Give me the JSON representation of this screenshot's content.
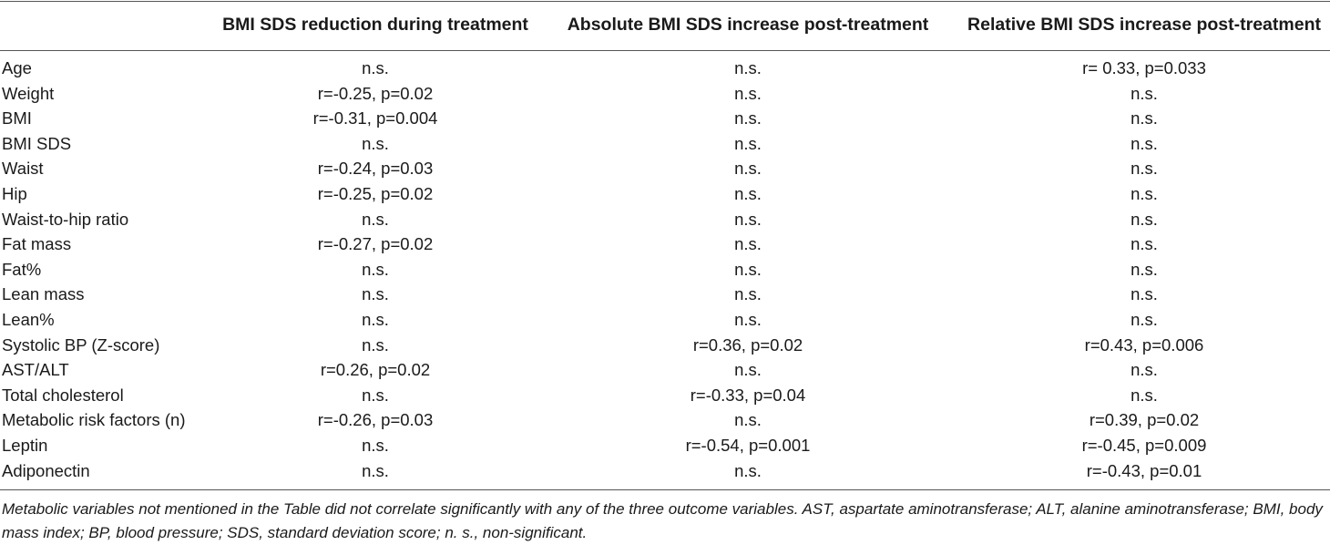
{
  "table": {
    "headers": [
      "",
      "BMI SDS reduction during treatment",
      "Absolute BMI SDS increase post-treatment",
      "Relative BMI SDS increase post-treatment"
    ],
    "rows": [
      [
        "Age",
        "n.s.",
        "n.s.",
        "r= 0.33, p=0.033"
      ],
      [
        "Weight",
        "r=-0.25, p=0.02",
        "n.s.",
        "n.s."
      ],
      [
        "BMI",
        "r=-0.31, p=0.004",
        "n.s.",
        "n.s."
      ],
      [
        "BMI SDS",
        "n.s.",
        "n.s.",
        "n.s."
      ],
      [
        "Waist",
        "r=-0.24, p=0.03",
        "n.s.",
        "n.s."
      ],
      [
        "Hip",
        "r=-0.25, p=0.02",
        "n.s.",
        "n.s."
      ],
      [
        "Waist-to-hip ratio",
        "n.s.",
        "n.s.",
        "n.s."
      ],
      [
        "Fat mass",
        "r=-0.27, p=0.02",
        "n.s.",
        "n.s."
      ],
      [
        "Fat%",
        "n.s.",
        "n.s.",
        "n.s."
      ],
      [
        "Lean mass",
        "n.s.",
        "n.s.",
        "n.s."
      ],
      [
        "Lean%",
        "n.s.",
        "n.s.",
        "n.s."
      ],
      [
        "Systolic BP (Z-score)",
        "n.s.",
        "r=0.36, p=0.02",
        "r=0.43, p=0.006"
      ],
      [
        "AST/ALT",
        "r=0.26, p=0.02",
        "n.s.",
        "n.s."
      ],
      [
        "Total cholesterol",
        "n.s.",
        "r=-0.33, p=0.04",
        "n.s."
      ],
      [
        "Metabolic risk factors (n)",
        "r=-0.26, p=0.03",
        "n.s.",
        "r=0.39, p=0.02"
      ],
      [
        "Leptin",
        "n.s.",
        "r=-0.54, p=0.001",
        "r=-0.45, p=0.009"
      ],
      [
        "Adiponectin",
        "n.s.",
        "n.s.",
        "r=-0.43, p=0.01"
      ]
    ]
  },
  "footnote": "Metabolic variables not mentioned in the Table did not correlate significantly with any of the three outcome variables. AST, aspartate aminotransferase; ALT, alanine aminotransferase; BMI, body mass index; BP, blood pressure; SDS, standard deviation score; n. s., non-significant."
}
